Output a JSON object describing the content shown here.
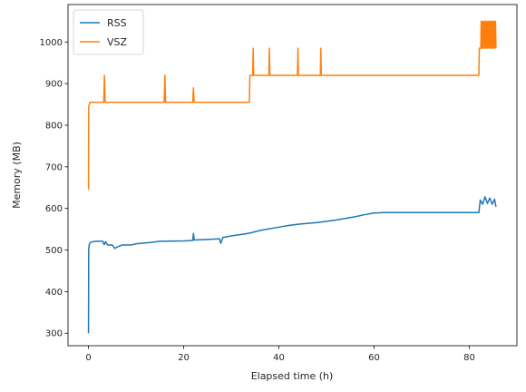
{
  "chart_data": {
    "type": "line",
    "xlabel": "Elapsed time (h)",
    "ylabel": "Memory (MB)",
    "xlim": [
      -4.3,
      90
    ],
    "ylim": [
      270,
      1090
    ],
    "xticks": [
      0,
      20,
      40,
      60,
      80
    ],
    "yticks": [
      300,
      400,
      500,
      600,
      700,
      800,
      900,
      1000
    ],
    "grid": false,
    "legend_position": "top-left",
    "series": [
      {
        "name": "RSS",
        "color": "#1f77b4",
        "points": [
          [
            0,
            300
          ],
          [
            0.05,
            505
          ],
          [
            0.2,
            515
          ],
          [
            0.5,
            519
          ],
          [
            1.5,
            521
          ],
          [
            3,
            521
          ],
          [
            3.3,
            513
          ],
          [
            3.6,
            520
          ],
          [
            4,
            512
          ],
          [
            5,
            512
          ],
          [
            5.5,
            504
          ],
          [
            6,
            507
          ],
          [
            7,
            512
          ],
          [
            9,
            512
          ],
          [
            10,
            515
          ],
          [
            13,
            518
          ],
          [
            15,
            521
          ],
          [
            20,
            522
          ],
          [
            21.9,
            523
          ],
          [
            22.05,
            540
          ],
          [
            22.2,
            524
          ],
          [
            26,
            526
          ],
          [
            27.5,
            527
          ],
          [
            27.8,
            516
          ],
          [
            28.2,
            530
          ],
          [
            30,
            534
          ],
          [
            33,
            539
          ],
          [
            34,
            541
          ],
          [
            36,
            547
          ],
          [
            40,
            555
          ],
          [
            42,
            559
          ],
          [
            44,
            562
          ],
          [
            48,
            566
          ],
          [
            52,
            572
          ],
          [
            56,
            580
          ],
          [
            58,
            585
          ],
          [
            60,
            589
          ],
          [
            62,
            590
          ],
          [
            70,
            590
          ],
          [
            82,
            590
          ],
          [
            82.3,
            620
          ],
          [
            82.8,
            610
          ],
          [
            83.3,
            628
          ],
          [
            83.8,
            612
          ],
          [
            84.3,
            625
          ],
          [
            84.8,
            610
          ],
          [
            85.3,
            622
          ],
          [
            85.6,
            604
          ]
        ]
      },
      {
        "name": "VSZ",
        "color": "#ff7f0e",
        "points": [
          [
            0,
            645
          ],
          [
            0.05,
            845
          ],
          [
            0.3,
            855
          ],
          [
            3.2,
            855
          ],
          [
            3.35,
            920
          ],
          [
            3.5,
            855
          ],
          [
            15.9,
            855
          ],
          [
            16.05,
            920
          ],
          [
            16.2,
            855
          ],
          [
            21.9,
            855
          ],
          [
            22.05,
            890
          ],
          [
            22.2,
            855
          ],
          [
            33.8,
            855
          ],
          [
            33.9,
            920
          ],
          [
            34.5,
            920
          ],
          [
            34.6,
            985
          ],
          [
            34.7,
            920
          ],
          [
            37.9,
            920
          ],
          [
            38,
            985
          ],
          [
            38.1,
            920
          ],
          [
            43.9,
            920
          ],
          [
            44,
            985
          ],
          [
            44.1,
            920
          ],
          [
            48.7,
            920
          ],
          [
            48.8,
            985
          ],
          [
            48.9,
            920
          ],
          [
            82,
            920
          ],
          [
            82.1,
            985
          ],
          [
            82.4,
            985
          ],
          [
            82.5,
            1050
          ],
          [
            82.6,
            985
          ],
          [
            82.8,
            1050
          ],
          [
            82.9,
            985
          ],
          [
            83.1,
            1050
          ],
          [
            83.2,
            985
          ],
          [
            83.4,
            1050
          ],
          [
            83.5,
            985
          ],
          [
            83.7,
            1050
          ],
          [
            83.8,
            985
          ],
          [
            84,
            1050
          ],
          [
            84.1,
            985
          ],
          [
            84.3,
            1050
          ],
          [
            84.4,
            985
          ],
          [
            84.6,
            1050
          ],
          [
            84.7,
            985
          ],
          [
            84.9,
            1050
          ],
          [
            85,
            985
          ],
          [
            85.2,
            1050
          ],
          [
            85.3,
            985
          ],
          [
            85.5,
            1050
          ],
          [
            85.6,
            985
          ]
        ]
      }
    ]
  }
}
